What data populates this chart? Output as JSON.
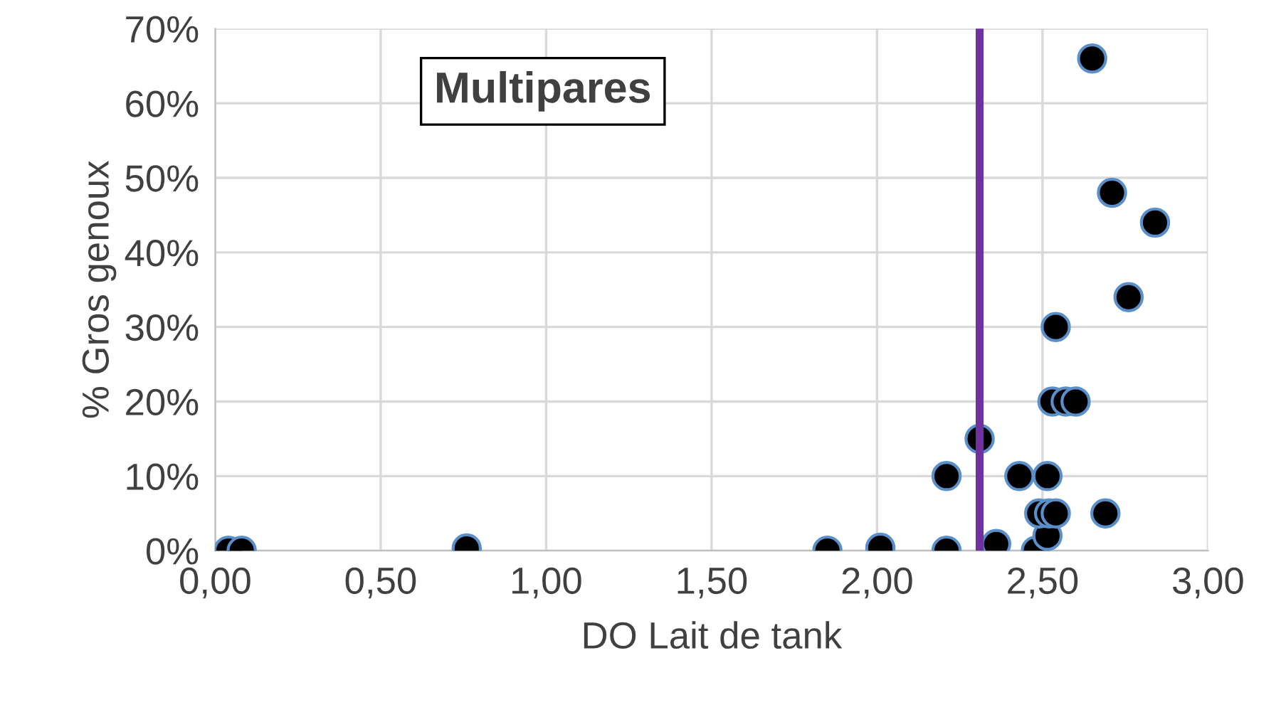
{
  "chart_data": {
    "type": "scatter",
    "xlabel": "DO Lait de tank",
    "ylabel": "% Gros genoux",
    "annotations": [
      "Multipares"
    ],
    "series": [
      {
        "color": "#000000",
        "x": [
          0.04,
          0.08,
          0.76,
          1.85,
          2.01,
          2.21,
          2.21,
          2.31,
          2.36,
          2.43,
          2.48,
          2.515,
          2.515,
          2.49,
          2.52,
          2.54,
          2.69,
          2.53,
          2.57,
          2.6,
          2.54,
          2.76,
          2.71,
          2.84,
          2.65
        ],
        "values": [
          0,
          0,
          0.3,
          0,
          0.4,
          0,
          10,
          15,
          0.9,
          10,
          0,
          2,
          10,
          5,
          5,
          5,
          5,
          20,
          20,
          20,
          30,
          34,
          48,
          44,
          66
        ]
      }
    ],
    "marker": "circle",
    "grid": true,
    "legend": false,
    "xlim": [
      0,
      3
    ],
    "xticks": [
      {
        "value": 0,
        "label": "0,00"
      },
      {
        "value": 0.5,
        "label": "0,50"
      },
      {
        "value": 1,
        "label": "1,00"
      },
      {
        "value": 1.5,
        "label": "1,50"
      },
      {
        "value": 2,
        "label": "2,00"
      },
      {
        "value": 2.5,
        "label": "2,50"
      },
      {
        "value": 3,
        "label": "3,00"
      }
    ],
    "ylim": [
      0,
      70
    ],
    "yticks": [
      {
        "value": 0,
        "label": "0%"
      },
      {
        "value": 10,
        "label": "10%"
      },
      {
        "value": 20,
        "label": "20%"
      },
      {
        "value": 30,
        "label": "30%"
      },
      {
        "value": 40,
        "label": "40%"
      },
      {
        "value": 50,
        "label": "50%"
      },
      {
        "value": 60,
        "label": "60%"
      },
      {
        "value": 70,
        "label": "70%"
      }
    ],
    "ref_lines": [
      {
        "axis": "x",
        "value": 2.31,
        "color": "#7030a0"
      }
    ]
  }
}
